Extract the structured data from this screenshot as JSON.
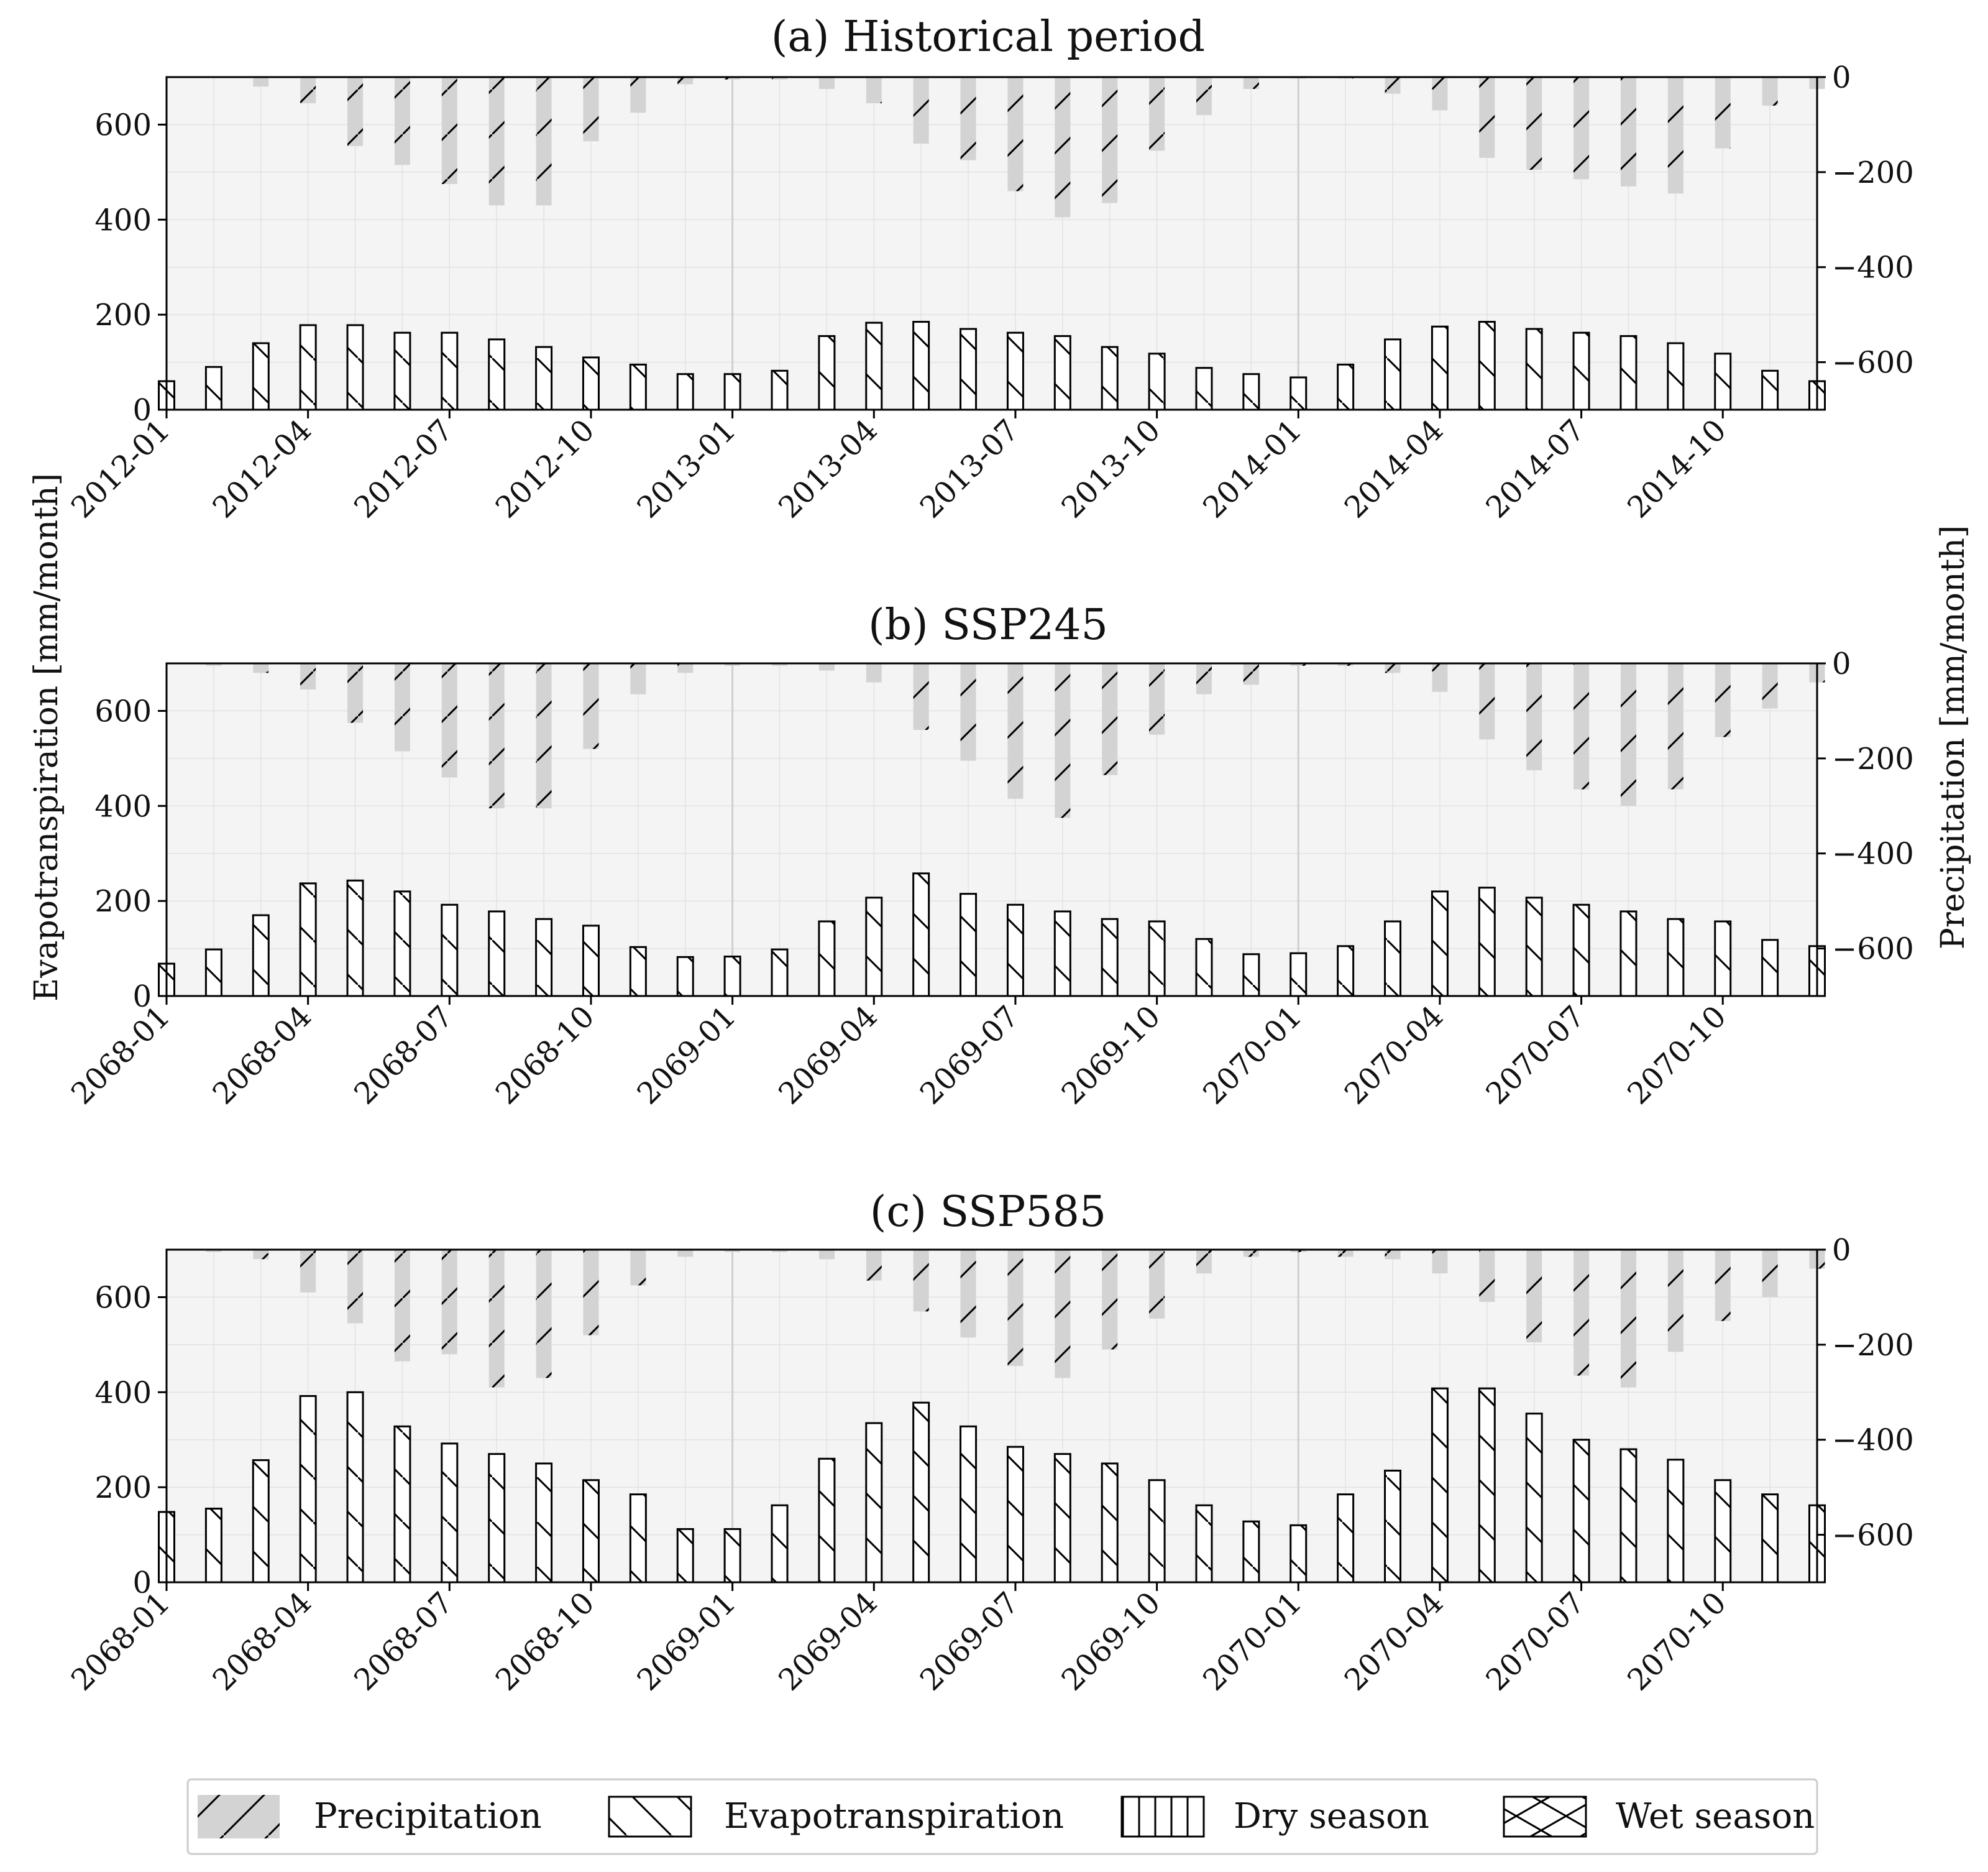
{
  "figure": {
    "ylabel_left": "Evapotranspiration [mm/month]",
    "ylabel_right": "Precipitation [mm/month]",
    "colors": {
      "background": "#f4f4f4",
      "grid": "#e2e2e2",
      "precip": "#d3d3d3",
      "evap": "#ffffff",
      "edge": "#000000"
    }
  },
  "legend": {
    "entries": [
      {
        "label": "Precipitation",
        "hatch": "forward-slash"
      },
      {
        "label": "Evapotranspiration",
        "hatch": "back-slash"
      },
      {
        "label": "Dry season",
        "hatch": "vertical"
      },
      {
        "label": "Wet season",
        "hatch": "cross"
      }
    ]
  },
  "chart_data": [
    {
      "type": "bar",
      "title": "(a) Historical period",
      "ylabel": "Evapotranspiration [mm/month]",
      "y2label": "Precipitation [mm/month]",
      "ylim": [
        0,
        700
      ],
      "y2lim": [
        -700,
        0
      ],
      "yticks": [
        "0",
        "200",
        "400",
        "600"
      ],
      "y2ticks": [
        "0",
        "−200",
        "−400",
        "−600"
      ],
      "xticks": [
        "2012-01",
        "2012-04",
        "2012-07",
        "2012-10",
        "2013-01",
        "2013-04",
        "2013-07",
        "2013-10",
        "2014-01",
        "2014-04",
        "2014-07",
        "2014-10"
      ],
      "series": [
        {
          "name": "Evapotranspiration",
          "axis": "left",
          "values": [
            60,
            90,
            140,
            178,
            178,
            162,
            162,
            148,
            132,
            110,
            95,
            75,
            75,
            82,
            155,
            183,
            185,
            170,
            162,
            155,
            132,
            118,
            88,
            75,
            68,
            95,
            148,
            175,
            185,
            170,
            162,
            155,
            140,
            118,
            82,
            60
          ]
        },
        {
          "name": "Precipitation",
          "axis": "right",
          "values": [
            0,
            0,
            -20,
            -55,
            -145,
            -185,
            -225,
            -270,
            -270,
            -135,
            -75,
            -15,
            -5,
            -5,
            -25,
            -55,
            -140,
            -175,
            -240,
            -295,
            -265,
            -155,
            -80,
            -25,
            -3,
            -3,
            -35,
            -70,
            -170,
            -195,
            -215,
            -230,
            -245,
            -150,
            -60,
            -25
          ]
        }
      ]
    },
    {
      "type": "bar",
      "title": "(b) SSP245",
      "ylabel": "Evapotranspiration [mm/month]",
      "y2label": "Precipitation [mm/month]",
      "ylim": [
        0,
        700
      ],
      "y2lim": [
        -700,
        0
      ],
      "yticks": [
        "0",
        "200",
        "400",
        "600"
      ],
      "y2ticks": [
        "0",
        "−200",
        "−400",
        "−600"
      ],
      "xticks": [
        "2068-01",
        "2068-04",
        "2068-07",
        "2068-10",
        "2069-01",
        "2069-04",
        "2069-07",
        "2069-10",
        "2070-01",
        "2070-04",
        "2070-07",
        "2070-10"
      ],
      "series": [
        {
          "name": "Evapotranspiration",
          "axis": "left",
          "values": [
            68,
            98,
            170,
            237,
            243,
            220,
            192,
            178,
            162,
            148,
            103,
            82,
            83,
            98,
            157,
            207,
            258,
            215,
            192,
            178,
            162,
            157,
            120,
            88,
            90,
            105,
            157,
            220,
            228,
            207,
            192,
            178,
            162,
            157,
            118,
            105
          ]
        },
        {
          "name": "Precipitation",
          "axis": "right",
          "values": [
            0,
            -5,
            -20,
            -55,
            -125,
            -185,
            -240,
            -305,
            -305,
            -180,
            -65,
            -20,
            -5,
            -5,
            -15,
            -40,
            -140,
            -205,
            -285,
            -325,
            -235,
            -150,
            -65,
            -45,
            -5,
            -5,
            -20,
            -60,
            -160,
            -225,
            -265,
            -300,
            -265,
            -155,
            -95,
            -40
          ]
        }
      ]
    },
    {
      "type": "bar",
      "title": "(c) SSP585",
      "ylabel": "Evapotranspiration [mm/month]",
      "y2label": "Precipitation [mm/month]",
      "ylim": [
        0,
        700
      ],
      "y2lim": [
        -700,
        0
      ],
      "yticks": [
        "0",
        "200",
        "400",
        "600"
      ],
      "y2ticks": [
        "0",
        "−200",
        "−400",
        "−600"
      ],
      "xticks": [
        "2068-01",
        "2068-04",
        "2068-07",
        "2068-10",
        "2069-01",
        "2069-04",
        "2069-07",
        "2069-10",
        "2070-01",
        "2070-04",
        "2070-07",
        "2070-10"
      ],
      "series": [
        {
          "name": "Evapotranspiration",
          "axis": "left",
          "values": [
            148,
            155,
            257,
            392,
            400,
            328,
            292,
            270,
            250,
            215,
            185,
            112,
            112,
            162,
            260,
            335,
            378,
            328,
            285,
            270,
            250,
            215,
            162,
            128,
            120,
            185,
            235,
            408,
            408,
            355,
            300,
            280,
            258,
            215,
            185,
            162
          ]
        },
        {
          "name": "Precipitation",
          "axis": "right",
          "values": [
            0,
            -5,
            -20,
            -90,
            -155,
            -235,
            -220,
            -290,
            -270,
            -180,
            -75,
            -15,
            -5,
            -5,
            -20,
            -65,
            -130,
            -185,
            -245,
            -270,
            -210,
            -145,
            -50,
            -15,
            -5,
            -15,
            -20,
            -50,
            -110,
            -195,
            -265,
            -290,
            -215,
            -150,
            -100,
            -40
          ]
        }
      ]
    }
  ]
}
